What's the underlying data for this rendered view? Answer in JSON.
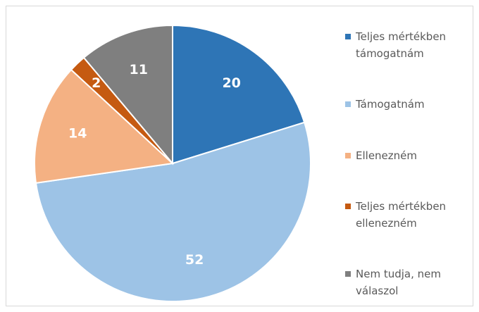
{
  "chart_data": {
    "type": "pie",
    "categories": [
      "Teljes mértékben támogatnám",
      "Támogatnám",
      "Ellenezném",
      "Teljes mértékben ellenezném",
      "Nem tudja, nem válaszol"
    ],
    "values": [
      20,
      52,
      14,
      2,
      11
    ],
    "colors": [
      "#2e75b6",
      "#9dc3e6",
      "#f4b183",
      "#c55a11",
      "#7f7f7f"
    ],
    "legend": "right"
  }
}
